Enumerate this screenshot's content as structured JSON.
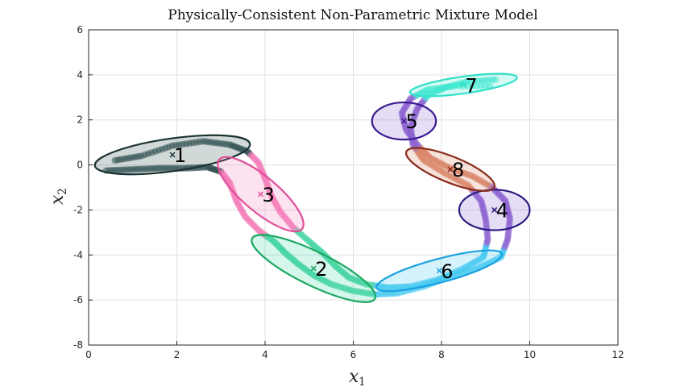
{
  "chart_data": {
    "type": "scatter",
    "title": "Physically-Consistent Non-Parametric Mixture Model",
    "xlabel": "x",
    "xlabel_sub": "1",
    "ylabel": "x",
    "ylabel_sub": "2",
    "xlim": [
      0,
      12
    ],
    "ylim": [
      -8,
      6
    ],
    "xticks": [
      0,
      2,
      4,
      6,
      8,
      10,
      12
    ],
    "yticks": [
      -8,
      -6,
      -4,
      -2,
      0,
      2,
      4,
      6
    ],
    "grid": true,
    "components": [
      {
        "label": "1",
        "center": [
          1.9,
          0.45
        ],
        "width": 3.55,
        "height": 1.45,
        "angle": 8,
        "color": "#2f4f4f",
        "edge": "#1b3333"
      },
      {
        "label": "2",
        "center": [
          5.1,
          -4.6
        ],
        "width": 3.1,
        "height": 1.5,
        "angle": -26,
        "color": "#3fd4a0",
        "edge": "#1aa860"
      },
      {
        "label": "3",
        "center": [
          3.9,
          -1.3
        ],
        "width": 2.45,
        "height": 1.55,
        "angle": -40,
        "color": "#f47ab8",
        "edge": "#e0509a"
      },
      {
        "label": "4",
        "center": [
          9.2,
          -2.0
        ],
        "width": 1.6,
        "height": 1.8,
        "angle": 0,
        "color": "#8a5fd0",
        "edge": "#2a1a80"
      },
      {
        "label": "5",
        "center": [
          7.15,
          1.95
        ],
        "width": 1.45,
        "height": 1.65,
        "angle": 0,
        "color": "#8a5fd0",
        "edge": "#3a1a90"
      },
      {
        "label": "6",
        "center": [
          7.95,
          -4.7
        ],
        "width": 2.95,
        "height": 1.05,
        "angle": 15,
        "color": "#40c8f0",
        "edge": "#1aa0e0"
      },
      {
        "label": "7",
        "center": [
          8.5,
          3.55
        ],
        "width": 2.45,
        "height": 0.75,
        "angle": 8,
        "color": "#40e8d0",
        "edge": "#30e0c8"
      },
      {
        "label": "8",
        "center": [
          8.2,
          -0.2
        ],
        "width": 2.15,
        "height": 1.15,
        "angle": -22,
        "color": "#d88060",
        "edge": "#8a2a1a"
      }
    ],
    "trajectories": [
      {
        "name": "upper",
        "points": [
          [
            0.6,
            0.2
          ],
          [
            1.2,
            0.4
          ],
          [
            1.9,
            0.85
          ],
          [
            2.6,
            1.05
          ],
          [
            3.2,
            0.9
          ],
          [
            3.6,
            0.6
          ],
          [
            3.85,
            0.1
          ],
          [
            4.0,
            -0.6
          ],
          [
            4.15,
            -1.4
          ],
          [
            4.35,
            -2.1
          ],
          [
            4.65,
            -2.8
          ],
          [
            5.0,
            -3.4
          ],
          [
            5.3,
            -3.9
          ],
          [
            5.6,
            -4.5
          ],
          [
            5.9,
            -5.0
          ],
          [
            6.3,
            -5.3
          ],
          [
            6.8,
            -5.45
          ],
          [
            7.3,
            -5.4
          ],
          [
            7.9,
            -5.1
          ],
          [
            8.5,
            -4.6
          ],
          [
            8.95,
            -4.1
          ],
          [
            9.05,
            -3.3
          ],
          [
            9.0,
            -2.4
          ],
          [
            8.9,
            -1.6
          ],
          [
            8.6,
            -0.9
          ],
          [
            8.1,
            -0.4
          ],
          [
            7.6,
            0.2
          ],
          [
            7.35,
            0.9
          ],
          [
            7.3,
            1.7
          ],
          [
            7.45,
            2.5
          ],
          [
            7.7,
            3.1
          ],
          [
            8.1,
            3.45
          ],
          [
            8.6,
            3.7
          ],
          [
            9.3,
            3.8
          ]
        ]
      },
      {
        "name": "lower",
        "points": [
          [
            0.4,
            -0.25
          ],
          [
            1.0,
            -0.2
          ],
          [
            1.6,
            -0.15
          ],
          [
            2.2,
            -0.15
          ],
          [
            2.7,
            -0.1
          ],
          [
            3.0,
            -0.3
          ],
          [
            3.2,
            -0.8
          ],
          [
            3.35,
            -1.6
          ],
          [
            3.55,
            -2.3
          ],
          [
            3.85,
            -2.9
          ],
          [
            4.2,
            -3.4
          ],
          [
            4.45,
            -3.9
          ],
          [
            4.75,
            -4.4
          ],
          [
            5.1,
            -4.9
          ],
          [
            5.5,
            -5.3
          ],
          [
            6.0,
            -5.6
          ],
          [
            6.5,
            -5.75
          ],
          [
            7.0,
            -5.7
          ],
          [
            7.6,
            -5.4
          ],
          [
            8.2,
            -4.95
          ],
          [
            8.8,
            -4.6
          ],
          [
            9.35,
            -4.1
          ],
          [
            9.5,
            -3.3
          ],
          [
            9.55,
            -2.4
          ],
          [
            9.45,
            -1.6
          ],
          [
            9.15,
            -1.0
          ],
          [
            8.7,
            -0.5
          ],
          [
            8.2,
            -0.15
          ],
          [
            7.75,
            0.3
          ],
          [
            7.45,
            0.9
          ],
          [
            7.2,
            1.55
          ],
          [
            7.1,
            2.3
          ],
          [
            7.3,
            2.95
          ],
          [
            7.7,
            3.35
          ],
          [
            8.3,
            3.5
          ],
          [
            9.2,
            3.5
          ]
        ]
      }
    ]
  }
}
